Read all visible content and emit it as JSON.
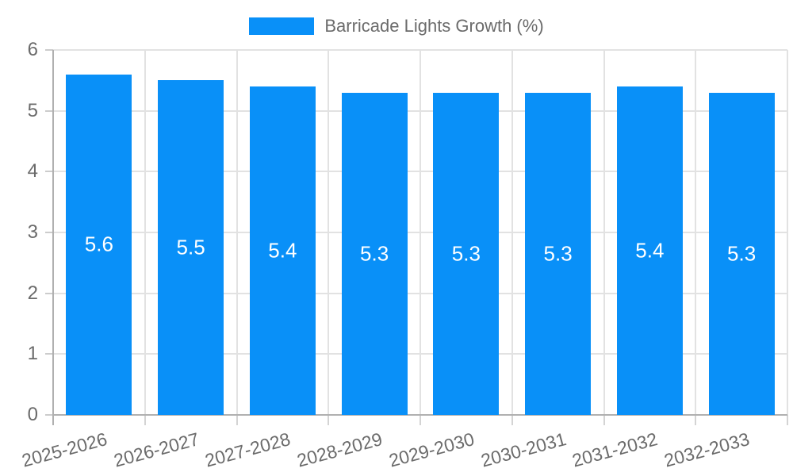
{
  "chart_data": {
    "type": "bar",
    "title": "",
    "categories": [
      "2025-2026",
      "2026-2027",
      "2027-2028",
      "2028-2029",
      "2029-2030",
      "2030-2031",
      "2031-2032",
      "2032-2033"
    ],
    "series": [
      {
        "name": "Barricade Lights Growth (%)",
        "values": [
          5.6,
          5.5,
          5.4,
          5.3,
          5.3,
          5.3,
          5.4,
          5.3
        ],
        "color": "#0990f8"
      }
    ],
    "value_labels": [
      "5.6",
      "5.5",
      "5.4",
      "5.3",
      "5.3",
      "5.3",
      "5.4",
      "5.3"
    ],
    "xlabel": "",
    "ylabel": "",
    "ylim": [
      0,
      6
    ],
    "yticks": [
      "0",
      "1",
      "2",
      "3",
      "4",
      "5",
      "6"
    ],
    "grid": true,
    "legend_position": "top-center",
    "value_label_position": "inside-center",
    "colors": {
      "bar": "#0990f8",
      "value_label_text": "#ffffff",
      "axis_text": "#6b6b6b",
      "gridline": "#e2e2e2",
      "axis_line": "#b0b0b0"
    }
  }
}
